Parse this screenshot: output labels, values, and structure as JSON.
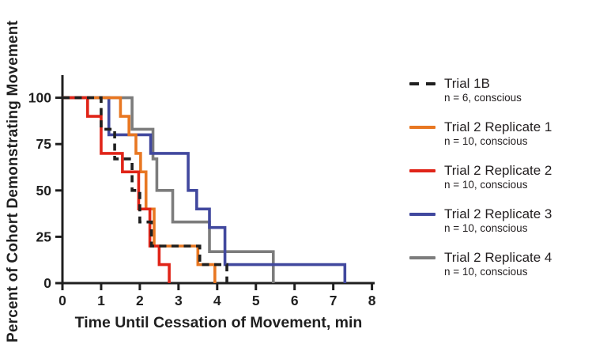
{
  "chart_data": {
    "type": "line",
    "subtype": "kaplan-meier-step-curves",
    "title": "",
    "xlabel": "Time Until Cessation of Movement, min",
    "ylabel": "Percent of Cohort Demonstrating Movement",
    "xlim": [
      0,
      8
    ],
    "ylim": [
      0,
      100
    ],
    "x_ticks": [
      0,
      1,
      2,
      3,
      4,
      5,
      6,
      7,
      8
    ],
    "y_ticks": [
      0,
      25,
      50,
      75,
      100
    ],
    "grid": false,
    "legend_position": "right-of-plot",
    "axis_color": "#1f1f1f",
    "series": [
      {
        "name": "Trial 1B",
        "sub": "n = 6, conscious",
        "color": "#1f1f1f",
        "dash": true,
        "steps": [
          [
            0,
            100
          ],
          [
            1.0,
            83
          ],
          [
            1.35,
            67
          ],
          [
            1.8,
            50
          ],
          [
            2.0,
            33
          ],
          [
            2.3,
            20
          ],
          [
            3.55,
            10
          ],
          [
            4.25,
            0
          ]
        ]
      },
      {
        "name": "Trial 2 Replicate 1",
        "sub": "n = 10, conscious",
        "color": "#e87722",
        "dash": false,
        "steps": [
          [
            0,
            100
          ],
          [
            1.5,
            90
          ],
          [
            1.72,
            80
          ],
          [
            1.9,
            70
          ],
          [
            2.02,
            60
          ],
          [
            2.16,
            40
          ],
          [
            2.37,
            20
          ],
          [
            3.5,
            10
          ],
          [
            3.94,
            0
          ]
        ]
      },
      {
        "name": "Trial 2 Replicate 2",
        "sub": "n = 10, conscious",
        "color": "#e02418",
        "dash": false,
        "steps": [
          [
            0,
            100
          ],
          [
            0.65,
            90
          ],
          [
            1.0,
            70
          ],
          [
            1.55,
            60
          ],
          [
            1.97,
            40
          ],
          [
            2.26,
            20
          ],
          [
            2.5,
            10
          ],
          [
            2.76,
            0
          ]
        ]
      },
      {
        "name": "Trial 2 Replicate 3",
        "sub": "n = 10, conscious",
        "color": "#41489e",
        "dash": false,
        "steps": [
          [
            0,
            100
          ],
          [
            1.2,
            80
          ],
          [
            2.28,
            70
          ],
          [
            3.25,
            50
          ],
          [
            3.47,
            40
          ],
          [
            3.8,
            30
          ],
          [
            4.2,
            10
          ],
          [
            7.3,
            0
          ]
        ]
      },
      {
        "name": "Trial 2 Replicate 4",
        "sub": "n = 10, conscious",
        "color": "#7c7c7c",
        "dash": false,
        "steps": [
          [
            0,
            100
          ],
          [
            1.8,
            83
          ],
          [
            2.34,
            67
          ],
          [
            2.44,
            50
          ],
          [
            2.85,
            33
          ],
          [
            3.8,
            17
          ],
          [
            5.45,
            0
          ]
        ]
      }
    ]
  }
}
